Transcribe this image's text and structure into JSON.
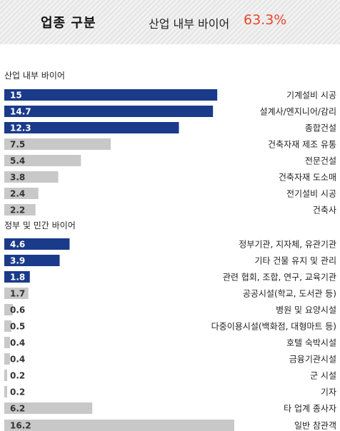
{
  "header": {
    "title": "업종 구분",
    "label": "산업 내부 바이어",
    "value": "63.3%"
  },
  "colors": {
    "highlight": "#1a3a8a",
    "normal": "#c8c8c8",
    "accent": "#e8472b"
  },
  "chart_data": {
    "type": "bar",
    "orientation": "horizontal",
    "max": 16.2,
    "groups": [
      {
        "title": "산업 내부 바이어",
        "items": [
          {
            "label": "기계설비 시공",
            "value": 15,
            "display": "15",
            "highlight": true
          },
          {
            "label": "설계사/엔지니어/감리",
            "value": 14.7,
            "display": "14.7",
            "highlight": true
          },
          {
            "label": "종합건설",
            "value": 12.3,
            "display": "12.3",
            "highlight": true
          },
          {
            "label": "건축자재 제조 유통",
            "value": 7.5,
            "display": "7.5",
            "highlight": false
          },
          {
            "label": "전문건설",
            "value": 5.4,
            "display": "5.4",
            "highlight": false
          },
          {
            "label": "건축자재 도소매",
            "value": 3.8,
            "display": "3.8",
            "highlight": false
          },
          {
            "label": "전기설비 시공",
            "value": 2.4,
            "display": "2.4",
            "highlight": false
          },
          {
            "label": "건축사",
            "value": 2.2,
            "display": "2.2",
            "highlight": false
          }
        ]
      },
      {
        "title": "정부 및 민간 바이어",
        "items": [
          {
            "label": "정부기관, 지자체, 유관기관",
            "value": 4.6,
            "display": "4.6",
            "highlight": true
          },
          {
            "label": "기타 건물 유지 및 관리",
            "value": 3.9,
            "display": "3.9",
            "highlight": true
          },
          {
            "label": "관련 협회, 조합, 연구, 교육기관",
            "value": 1.8,
            "display": "1.8",
            "highlight": true
          },
          {
            "label": "공공시설(학교, 도서관 등)",
            "value": 1.7,
            "display": "1.7",
            "highlight": false
          },
          {
            "label": "병원 및 요양시설",
            "value": 0.6,
            "display": "0.6",
            "highlight": false
          },
          {
            "label": "다중이용시설(백화점, 대형마트 등)",
            "value": 0.5,
            "display": "0.5",
            "highlight": false
          },
          {
            "label": "호텔 숙박시설",
            "value": 0.4,
            "display": "0.4",
            "highlight": false
          },
          {
            "label": "금융기관시설",
            "value": 0.4,
            "display": "0.4",
            "highlight": false
          },
          {
            "label": "군 시설",
            "value": 0.2,
            "display": "0.2",
            "highlight": false
          },
          {
            "label": "기자",
            "value": 0.2,
            "display": "0.2",
            "highlight": false
          },
          {
            "label": "타 업계 종사자",
            "value": 6.2,
            "display": "6.2",
            "highlight": false
          }
        ]
      },
      {
        "title": "",
        "items": [
          {
            "label": "일반 참관객",
            "value": 16.2,
            "display": "16.2",
            "highlight": false
          }
        ]
      }
    ]
  }
}
